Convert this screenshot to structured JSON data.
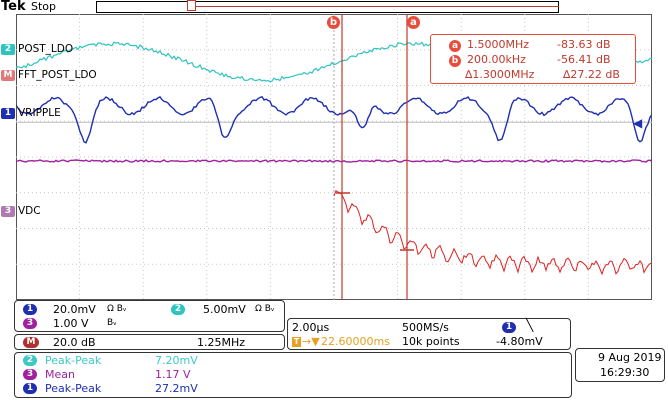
{
  "top": {
    "brand": "Tek",
    "status": "Stop"
  },
  "channels": {
    "ch2_label": "POST_LDO",
    "math_label": "FFT_POST_LDO",
    "ch1_label": "VRIPPLE",
    "ch3_label": "VDC",
    "badge2": "2",
    "badgeM": "M",
    "badge1": "1",
    "badge3": "3"
  },
  "cursors": {
    "a_label": "a",
    "b_label": "b",
    "a_freq": "1.5000MHz",
    "a_level": "-83.63 dB",
    "b_freq": "200.00kHz",
    "b_level": "-56.41 dB",
    "delta_freq": "∆1.3000MHz",
    "delta_level": "∆27.22 dB"
  },
  "scales": {
    "ch1_scale": "20.0mV",
    "ch1_bw": "Ω Bᵥ",
    "ch2_scale": "5.00mV",
    "ch2_bw": "Ω Bᵥ",
    "ch3_scale": "1.00 V",
    "ch3_bw": "Bᵥ",
    "math_scale": "20.0 dB",
    "math_span": "1.25MHz"
  },
  "timebase": {
    "time_div": "2.00µs",
    "sample_rate": "500MS/s",
    "trigger_pos": "22.60000ms",
    "record_length": "10k points",
    "trigger_level": "-4.80mV",
    "trigger_ch": "1",
    "trigger_slope": "╲"
  },
  "measurements": [
    {
      "ch": "2",
      "name": "Peak-Peak",
      "value": "7.20mV",
      "color": "#3ec9c9"
    },
    {
      "ch": "3",
      "name": "Mean",
      "value": "1.17 V",
      "color": "#a020a0"
    },
    {
      "ch": "1",
      "name": "Peak-Peak",
      "value": "27.2mV",
      "color": "#1f2fb0"
    }
  ],
  "datetime": {
    "date": "9 Aug  2019",
    "time": "16:29:30"
  },
  "colors": {
    "ch1": "#1f2fb0",
    "ch2": "#2ec4c0",
    "ch3": "#a020a0",
    "math": "#e02020",
    "cursor": "#c0392b"
  }
}
